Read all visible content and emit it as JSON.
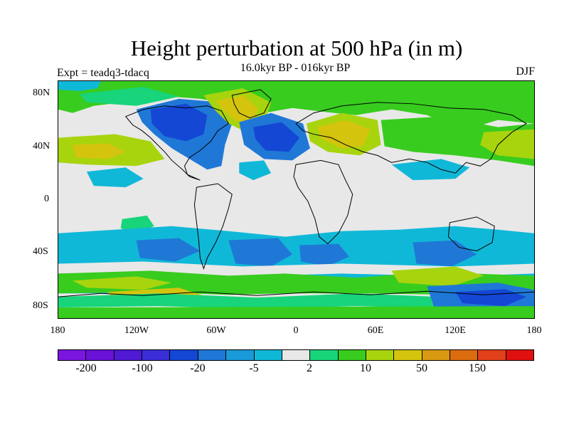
{
  "title": "Height perturbation at 500 hPa (in m)",
  "subtitle": "16.0kyr BP - 016kyr BP",
  "left_label": "Expt = teadq3-tdacq",
  "right_label": "DJF",
  "latitude_ticks": [
    "80N",
    "40N",
    "0",
    "40S",
    "80S"
  ],
  "longitude_ticks": [
    "180",
    "120W",
    "60W",
    "0",
    "60E",
    "120E",
    "180"
  ],
  "colorbar": {
    "colors": [
      "#7b16e0",
      "#6a12d6",
      "#4f1ad2",
      "#3a2ed6",
      "#1447d4",
      "#1f78d6",
      "#1a9ad8",
      "#10b8d8",
      "#e8e8e8",
      "#18d47a",
      "#38cc1e",
      "#a8d40e",
      "#d4c40e",
      "#d89a10",
      "#dc6c10",
      "#e0401a",
      "#e01010"
    ],
    "labels": [
      "-200",
      "-100",
      "-20",
      "-5",
      "2",
      "10",
      "50",
      "150"
    ]
  },
  "map_colors": {
    "background": "#e8e8e8",
    "dark_blue": "#1447d4",
    "blue": "#1f78d6",
    "light_blue": "#10b8d8",
    "aqua": "#18d47a",
    "green": "#38cc1e",
    "yellow_green": "#a8d40e",
    "yellow": "#d4c40e",
    "orange": "#d89a10",
    "coast": "#000000"
  }
}
